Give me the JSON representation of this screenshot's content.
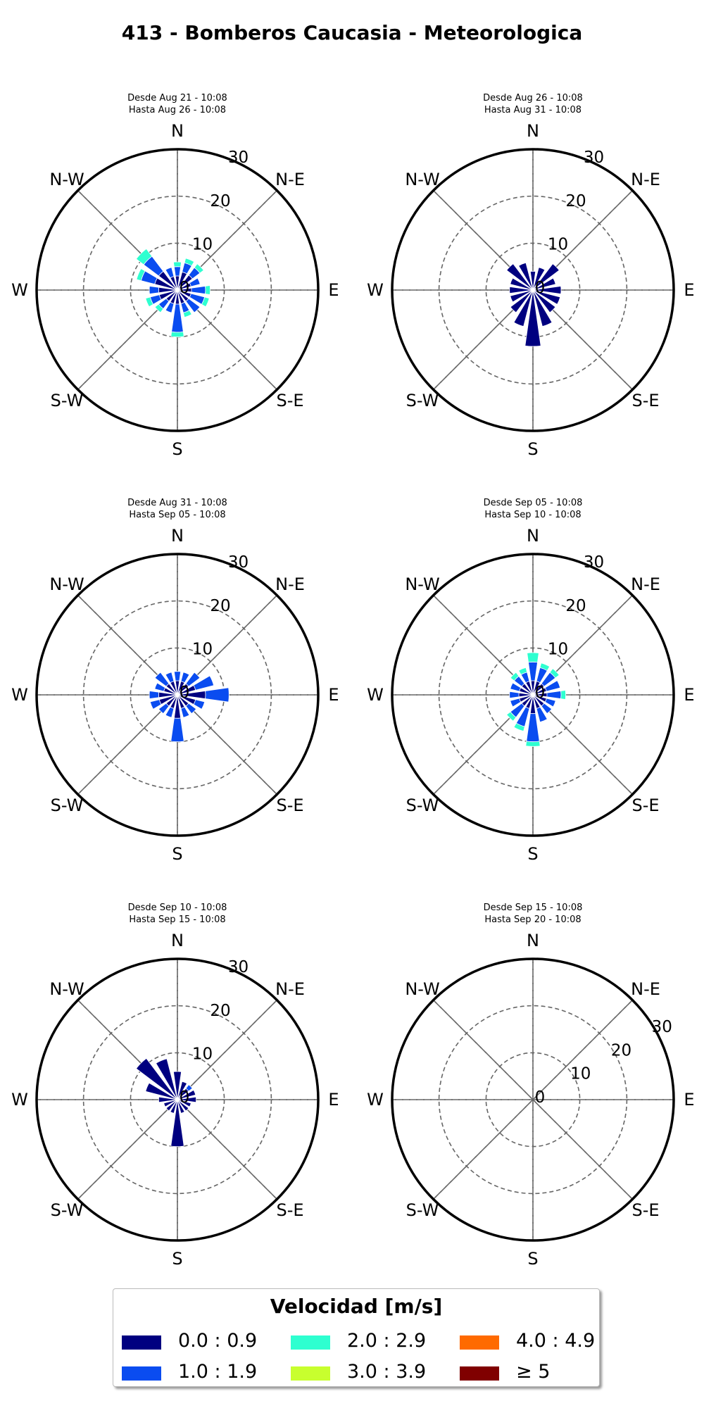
{
  "title": "413 - Bomberos Caucasia - Meteorologica",
  "direction_labels": [
    "N",
    "N-E",
    "E",
    "S-E",
    "S",
    "S-W",
    "W",
    "N-W"
  ],
  "legend": {
    "title": "Velocidad [m/s]",
    "items": [
      {
        "label": "0.0 : 0.9",
        "color": "#000080"
      },
      {
        "label": "1.0 : 1.9",
        "color": "#0a4cf0"
      },
      {
        "label": "2.0 : 2.9",
        "color": "#2effd0"
      },
      {
        "label": "3.0 : 3.9",
        "color": "#c8ff2e"
      },
      {
        "label": "4.0 : 4.9",
        "color": "#ff6a00"
      },
      {
        "label": "≥ 5",
        "color": "#800000"
      }
    ]
  },
  "chart_data": [
    {
      "type": "windrose",
      "subtitle": [
        "Desde Aug 21 - 10:08",
        "Hasta Aug 26 - 10:08"
      ],
      "rtick_labels": [
        "0",
        "10",
        "20",
        "30"
      ],
      "rlim": [
        0,
        30
      ],
      "speed_bins": [
        "0.0 : 0.9",
        "1.0 : 1.9",
        "2.0 : 2.9",
        "3.0 : 3.9",
        "4.0 : 4.9",
        "≥ 5"
      ],
      "directions_deg": [
        0,
        22.5,
        45,
        67.5,
        90,
        112.5,
        135,
        157.5,
        180,
        202.5,
        225,
        247.5,
        270,
        292.5,
        315,
        337.5
      ],
      "series": [
        {
          "name": "0.0 : 0.9",
          "values": [
            3,
            4,
            4,
            3,
            3,
            3,
            3,
            3,
            3,
            3,
            3,
            4,
            4,
            5,
            5,
            3
          ]
        },
        {
          "name": "1.0 : 1.9",
          "values": [
            2,
            2,
            2,
            2,
            3,
            3,
            3,
            2,
            6,
            2,
            2,
            2,
            2,
            3,
            4,
            2
          ]
        },
        {
          "name": "2.0 : 2.9",
          "values": [
            1,
            1,
            1,
            0,
            1,
            1,
            0,
            1,
            1,
            0,
            1,
            1,
            0,
            1,
            2,
            0
          ]
        }
      ]
    },
    {
      "type": "windrose",
      "subtitle": [
        "Desde Aug 26 - 10:08",
        "Hasta Aug 31 - 10:08"
      ],
      "rtick_labels": [
        "0",
        "10",
        "20",
        "30"
      ],
      "rlim": [
        0,
        30
      ],
      "speed_bins": [
        "0.0 : 0.9",
        "1.0 : 1.9",
        "2.0 : 2.9",
        "3.0 : 3.9",
        "4.0 : 4.9",
        "≥ 5"
      ],
      "directions_deg": [
        0,
        22.5,
        45,
        67.5,
        90,
        112.5,
        135,
        157.5,
        180,
        202.5,
        225,
        247.5,
        270,
        292.5,
        315,
        337.5
      ],
      "series": [
        {
          "name": "0.0 : 0.9",
          "values": [
            4,
            5,
            7,
            5,
            6,
            6,
            6,
            8,
            12,
            8,
            6,
            5,
            5,
            5,
            7,
            6
          ]
        },
        {
          "name": "1.0 : 1.9",
          "values": [
            0,
            0,
            0,
            0,
            0,
            0,
            0,
            0,
            0,
            0,
            0,
            0,
            0,
            0,
            0,
            0
          ]
        },
        {
          "name": "2.0 : 2.9",
          "values": [
            0,
            0,
            0,
            0,
            0,
            0,
            0,
            0,
            0,
            0,
            0,
            0,
            0,
            0,
            0,
            0
          ]
        }
      ]
    },
    {
      "type": "windrose",
      "subtitle": [
        "Desde Aug 31 - 10:08",
        "Hasta Sep 05 - 10:08"
      ],
      "rtick_labels": [
        "0",
        "10",
        "20",
        "30"
      ],
      "rlim": [
        0,
        30
      ],
      "speed_bins": [
        "0.0 : 0.9",
        "1.0 : 1.9",
        "2.0 : 2.9",
        "3.0 : 3.9",
        "4.0 : 4.9",
        "≥ 5"
      ],
      "directions_deg": [
        0,
        22.5,
        45,
        67.5,
        90,
        112.5,
        135,
        157.5,
        180,
        202.5,
        225,
        247.5,
        270,
        292.5,
        315,
        337.5
      ],
      "series": [
        {
          "name": "0.0 : 0.9",
          "values": [
            3,
            3,
            3,
            4,
            6,
            4,
            3,
            3,
            5,
            3,
            3,
            4,
            4,
            3,
            3,
            3
          ]
        },
        {
          "name": "1.0 : 1.9",
          "values": [
            2,
            2,
            3,
            4,
            5,
            2,
            2,
            2,
            5,
            2,
            2,
            2,
            2,
            2,
            3,
            2
          ]
        },
        {
          "name": "2.0 : 2.9",
          "values": [
            0,
            0,
            0,
            0,
            0,
            0,
            0,
            0,
            0,
            0,
            0,
            0,
            0,
            0,
            0,
            0
          ]
        }
      ]
    },
    {
      "type": "windrose",
      "subtitle": [
        "Desde Sep 05 - 10:08",
        "Hasta Sep 10 - 10:08"
      ],
      "rtick_labels": [
        "0",
        "10",
        "20",
        "30"
      ],
      "rlim": [
        0,
        30
      ],
      "speed_bins": [
        "0.0 : 0.9",
        "1.0 : 1.9",
        "2.0 : 2.9",
        "3.0 : 3.9",
        "4.0 : 4.9",
        "≥ 5"
      ],
      "directions_deg": [
        0,
        22.5,
        45,
        67.5,
        90,
        112.5,
        135,
        157.5,
        180,
        202.5,
        225,
        247.5,
        270,
        292.5,
        315,
        337.5
      ],
      "series": [
        {
          "name": "0.0 : 0.9",
          "values": [
            3,
            3,
            3,
            3,
            3,
            3,
            3,
            3,
            4,
            3,
            3,
            3,
            3,
            3,
            3,
            3
          ]
        },
        {
          "name": "1.0 : 1.9",
          "values": [
            4,
            3,
            3,
            3,
            3,
            2,
            2,
            3,
            6,
            4,
            3,
            2,
            2,
            2,
            2,
            2
          ]
        },
        {
          "name": "2.0 : 2.9",
          "values": [
            2,
            1,
            1,
            0,
            1,
            0,
            0,
            0,
            1,
            1,
            1,
            0,
            0,
            0,
            1,
            1
          ]
        }
      ]
    },
    {
      "type": "windrose",
      "subtitle": [
        "Desde Sep 10 - 10:08",
        "Hasta Sep 15 - 10:08"
      ],
      "rtick_labels": [
        "0",
        "10",
        "20",
        "30"
      ],
      "rlim": [
        0,
        30
      ],
      "speed_bins": [
        "0.0 : 0.9",
        "1.0 : 1.9",
        "2.0 : 2.9",
        "3.0 : 3.9",
        "4.0 : 4.9",
        "≥ 5"
      ],
      "directions_deg": [
        0,
        22.5,
        45,
        67.5,
        90,
        112.5,
        135,
        157.5,
        180,
        202.5,
        225,
        247.5,
        270,
        292.5,
        315,
        337.5
      ],
      "series": [
        {
          "name": "0.0 : 0.9",
          "values": [
            6,
            4,
            3,
            4,
            4,
            3,
            3,
            3,
            10,
            3,
            3,
            3,
            4,
            7,
            11,
            9
          ]
        },
        {
          "name": "1.0 : 1.9",
          "values": [
            0,
            0,
            1,
            0,
            0,
            0,
            0,
            0,
            0,
            0,
            0,
            0,
            0,
            0,
            0,
            0
          ]
        },
        {
          "name": "2.0 : 2.9",
          "values": [
            0,
            0,
            0,
            0,
            0,
            0,
            0,
            0,
            0,
            0,
            0,
            0,
            0,
            0,
            0,
            0
          ]
        }
      ]
    },
    {
      "type": "windrose",
      "subtitle": [
        "Desde Sep 15 - 10:08",
        "Hasta Sep 20 - 10:08"
      ],
      "rtick_labels": [
        "0",
        "10",
        "20",
        "30"
      ],
      "rlim": [
        0,
        30
      ],
      "speed_bins": [
        "0.0 : 0.9",
        "1.0 : 1.9",
        "2.0 : 2.9",
        "3.0 : 3.9",
        "4.0 : 4.9",
        "≥ 5"
      ],
      "directions_deg": [
        0,
        22.5,
        45,
        67.5,
        90,
        112.5,
        135,
        157.5,
        180,
        202.5,
        225,
        247.5,
        270,
        292.5,
        315,
        337.5
      ],
      "series": [
        {
          "name": "0.0 : 0.9",
          "values": [
            0,
            0,
            0,
            0,
            0,
            0,
            0,
            0,
            0,
            0,
            0,
            0,
            0,
            0,
            0,
            0
          ]
        },
        {
          "name": "1.0 : 1.9",
          "values": [
            0,
            0,
            0,
            0,
            0,
            0,
            0,
            0,
            0,
            0,
            0,
            0,
            0,
            0,
            0,
            0
          ]
        },
        {
          "name": "2.0 : 2.9",
          "values": [
            0,
            0,
            0,
            0,
            0,
            0,
            0,
            0,
            0,
            0,
            0,
            0,
            0,
            0,
            0,
            0
          ]
        }
      ]
    }
  ]
}
